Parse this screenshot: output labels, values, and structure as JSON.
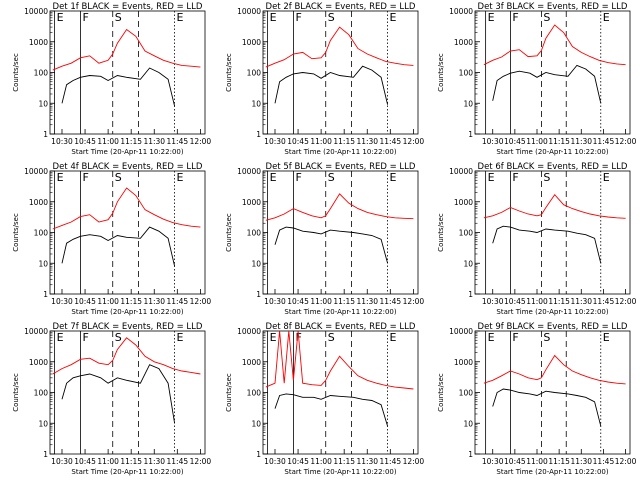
{
  "shared": {
    "ylabel": "Counts/sec",
    "xlabel": "Start Time (20-Apr-11 10:22:00)",
    "yticks": [
      "1",
      "10",
      "100",
      "1000",
      "10000"
    ],
    "xticks_std": [
      "10:30",
      "10:45",
      "11:00",
      "11:15",
      "11:30",
      "11:45",
      "12:00"
    ],
    "xticks_wide": [
      "10:30",
      "10:45",
      "11:00",
      "11:15",
      "11:30",
      "11:45",
      "12:00"
    ],
    "colors": {
      "events": "#000000",
      "lld": "#ff0000"
    },
    "markers": [
      {
        "label": "E",
        "time": 10.42
      },
      {
        "label": "F",
        "time": 10.7
      },
      {
        "label": "S",
        "time": 11.05
      },
      {
        "label": "E",
        "time": 11.72
      }
    ]
  },
  "chart_data": [
    {
      "type": "line",
      "title": "Det 1f BLACK = Events, RED = LLD",
      "xlabel": "Start Time (20-Apr-11 10:22:00)",
      "ylabel": "Counts/sec",
      "ylim": [
        1,
        10000
      ],
      "yscale": "log",
      "xlim": [
        10.37,
        12.05
      ],
      "xticks": [
        "10:30",
        "10:45",
        "11:00",
        "11:15",
        "11:30",
        "11:45",
        "12:00"
      ],
      "series": [
        {
          "color": "#000000",
          "x": [
            10.5,
            10.55,
            10.62,
            10.7,
            10.8,
            10.92,
            11.0,
            11.1,
            11.2,
            11.35,
            11.45,
            11.55,
            11.65,
            11.72
          ],
          "y": [
            10,
            40,
            55,
            70,
            80,
            75,
            55,
            80,
            70,
            60,
            140,
            100,
            60,
            8
          ]
        },
        {
          "color": "#ff0000",
          "x": [
            10.4,
            10.5,
            10.6,
            10.7,
            10.8,
            10.9,
            11.0,
            11.05,
            11.1,
            11.2,
            11.3,
            11.4,
            11.5,
            11.6,
            11.7,
            11.8,
            11.9,
            12.0
          ],
          "y": [
            120,
            160,
            200,
            300,
            350,
            200,
            250,
            400,
            900,
            2500,
            1500,
            500,
            350,
            250,
            200,
            170,
            160,
            150
          ]
        }
      ]
    },
    {
      "type": "line",
      "title": "Det 2f BLACK = Events, RED = LLD",
      "xlabel": "Start Time (20-Apr-11 10:22:00)",
      "ylabel": "Counts/sec",
      "ylim": [
        1,
        10000
      ],
      "yscale": "log",
      "xlim": [
        10.37,
        12.05
      ],
      "xticks": [
        "10:30",
        "10:45",
        "11:00",
        "11:15",
        "11:30",
        "11:45",
        "12:00"
      ],
      "series": [
        {
          "color": "#000000",
          "x": [
            10.5,
            10.55,
            10.62,
            10.7,
            10.8,
            10.92,
            11.0,
            11.1,
            11.2,
            11.35,
            11.45,
            11.55,
            11.65,
            11.72
          ],
          "y": [
            10,
            50,
            70,
            90,
            100,
            90,
            65,
            100,
            80,
            70,
            160,
            120,
            70,
            9
          ]
        },
        {
          "color": "#ff0000",
          "x": [
            10.4,
            10.5,
            10.6,
            10.7,
            10.8,
            10.9,
            11.0,
            11.05,
            11.1,
            11.2,
            11.3,
            11.4,
            11.5,
            11.6,
            11.7,
            11.8,
            11.9,
            12.0
          ],
          "y": [
            150,
            200,
            260,
            400,
            450,
            280,
            300,
            450,
            1100,
            3000,
            1700,
            600,
            400,
            300,
            230,
            200,
            180,
            170
          ]
        }
      ]
    },
    {
      "type": "line",
      "title": "Det 3f BLACK = Events, RED = LLD",
      "xlabel": "Start Time (20-Apr-11 10:22:00)",
      "ylabel": "Counts/sec",
      "ylim": [
        1,
        10000
      ],
      "yscale": "log",
      "xlim": [
        10.3,
        12.05
      ],
      "xticks": [
        "10:30",
        "10:45",
        "11:00",
        "11:15",
        "11:30",
        "11:45",
        "12:00"
      ],
      "series": [
        {
          "color": "#000000",
          "x": [
            10.5,
            10.55,
            10.62,
            10.7,
            10.8,
            10.92,
            11.0,
            11.1,
            11.2,
            11.35,
            11.45,
            11.55,
            11.65,
            11.72
          ],
          "y": [
            12,
            55,
            75,
            95,
            110,
            95,
            70,
            100,
            85,
            75,
            170,
            130,
            75,
            10
          ]
        },
        {
          "color": "#ff0000",
          "x": [
            10.4,
            10.5,
            10.6,
            10.7,
            10.8,
            10.9,
            11.0,
            11.05,
            11.1,
            11.2,
            11.3,
            11.4,
            11.5,
            11.6,
            11.7,
            11.8,
            11.9,
            12.0
          ],
          "y": [
            180,
            250,
            320,
            500,
            550,
            330,
            350,
            520,
            1300,
            3500,
            2000,
            700,
            450,
            330,
            250,
            210,
            190,
            180
          ]
        }
      ]
    },
    {
      "type": "line",
      "title": "Det 4f BLACK = Events, RED = LLD",
      "xlabel": "Start Time (20-Apr-11 10:22:00)",
      "ylabel": "Counts/sec",
      "ylim": [
        1,
        10000
      ],
      "yscale": "log",
      "xlim": [
        10.37,
        12.05
      ],
      "xticks": [
        "10:30",
        "10:45",
        "11:00",
        "11:15",
        "11:30",
        "11:45",
        "12:00"
      ],
      "series": [
        {
          "color": "#000000",
          "x": [
            10.5,
            10.55,
            10.62,
            10.7,
            10.8,
            10.92,
            11.0,
            11.1,
            11.2,
            11.35,
            11.45,
            11.55,
            11.65,
            11.72
          ],
          "y": [
            10,
            45,
            60,
            75,
            85,
            75,
            55,
            80,
            70,
            65,
            150,
            110,
            65,
            8
          ]
        },
        {
          "color": "#ff0000",
          "x": [
            10.4,
            10.5,
            10.6,
            10.7,
            10.8,
            10.9,
            11.0,
            11.05,
            11.1,
            11.2,
            11.3,
            11.4,
            11.5,
            11.6,
            11.7,
            11.8,
            11.9,
            12.0
          ],
          "y": [
            130,
            170,
            220,
            330,
            380,
            220,
            260,
            420,
            1000,
            2800,
            1600,
            550,
            380,
            270,
            210,
            180,
            160,
            150
          ]
        }
      ]
    },
    {
      "type": "line",
      "title": "Det 5f BLACK = Events, RED = LLD",
      "xlabel": "Start Time (20-Apr-11 10:22:00)",
      "ylabel": "Counts/sec",
      "ylim": [
        1,
        10000
      ],
      "yscale": "log",
      "xlim": [
        10.37,
        12.05
      ],
      "xticks": [
        "10:30",
        "10:45",
        "11:00",
        "11:15",
        "11:30",
        "11:45",
        "12:00"
      ],
      "series": [
        {
          "color": "#000000",
          "x": [
            10.5,
            10.55,
            10.62,
            10.7,
            10.8,
            10.92,
            11.0,
            11.1,
            11.2,
            11.35,
            11.45,
            11.55,
            11.65,
            11.72
          ],
          "y": [
            40,
            120,
            150,
            140,
            110,
            100,
            90,
            120,
            110,
            100,
            90,
            80,
            60,
            10
          ]
        },
        {
          "color": "#ff0000",
          "x": [
            10.4,
            10.5,
            10.6,
            10.7,
            10.8,
            10.9,
            11.0,
            11.05,
            11.1,
            11.2,
            11.3,
            11.4,
            11.5,
            11.6,
            11.7,
            11.8,
            11.9,
            12.0
          ],
          "y": [
            250,
            300,
            400,
            600,
            450,
            350,
            300,
            350,
            600,
            1800,
            900,
            600,
            450,
            380,
            330,
            300,
            290,
            280
          ]
        }
      ]
    },
    {
      "type": "line",
      "title": "Det 6f BLACK = Events, RED = LLD",
      "xlabel": "Start Time (20-Apr-11 10:22:00)",
      "ylabel": "Counts/sec",
      "ylim": [
        1,
        10000
      ],
      "yscale": "log",
      "xlim": [
        10.3,
        12.05
      ],
      "xticks": [
        "10:30",
        "10:45",
        "11:00",
        "11:15",
        "11:30",
        "11:45",
        "12:00"
      ],
      "series": [
        {
          "color": "#000000",
          "x": [
            10.5,
            10.55,
            10.62,
            10.7,
            10.8,
            10.92,
            11.0,
            11.1,
            11.2,
            11.35,
            11.45,
            11.55,
            11.65,
            11.72
          ],
          "y": [
            45,
            130,
            160,
            150,
            120,
            110,
            100,
            130,
            120,
            110,
            95,
            85,
            65,
            10
          ]
        },
        {
          "color": "#ff0000",
          "x": [
            10.4,
            10.5,
            10.6,
            10.7,
            10.8,
            10.9,
            11.0,
            11.05,
            11.1,
            11.2,
            11.3,
            11.4,
            11.5,
            11.6,
            11.7,
            11.8,
            11.9,
            12.0
          ],
          "y": [
            300,
            350,
            450,
            650,
            500,
            400,
            350,
            380,
            650,
            1700,
            800,
            600,
            480,
            400,
            350,
            320,
            300,
            290
          ]
        }
      ]
    },
    {
      "type": "line",
      "title": "Det 7f BLACK = Events, RED = LLD",
      "xlabel": "Start Time (20-Apr-11 10:22:00)",
      "ylabel": "Counts/sec",
      "ylim": [
        1,
        10000
      ],
      "yscale": "log",
      "xlim": [
        10.37,
        12.05
      ],
      "xticks": [
        "10:30",
        "10:45",
        "11:00",
        "11:15",
        "11:30",
        "11:45",
        "12:00"
      ],
      "series": [
        {
          "color": "#000000",
          "x": [
            10.5,
            10.55,
            10.62,
            10.7,
            10.8,
            10.92,
            11.0,
            11.1,
            11.2,
            11.35,
            11.45,
            11.55,
            11.65,
            11.72
          ],
          "y": [
            60,
            200,
            300,
            350,
            400,
            300,
            200,
            300,
            250,
            200,
            800,
            600,
            200,
            10
          ]
        },
        {
          "color": "#ff0000",
          "x": [
            10.4,
            10.5,
            10.6,
            10.7,
            10.8,
            10.9,
            11.0,
            11.05,
            11.1,
            11.2,
            11.3,
            11.4,
            11.5,
            11.6,
            11.7,
            11.8,
            11.9,
            12.0
          ],
          "y": [
            400,
            600,
            800,
            1200,
            1300,
            900,
            800,
            1100,
            2500,
            6000,
            3500,
            1500,
            1000,
            800,
            600,
            500,
            450,
            400
          ]
        }
      ]
    },
    {
      "type": "line",
      "title": "Det 8f BLACK = Events, RED = LLD",
      "xlabel": "Start Time (20-Apr-11 10:22:00)",
      "ylabel": "Counts/sec",
      "ylim": [
        1,
        10000
      ],
      "yscale": "log",
      "xlim": [
        10.37,
        12.05
      ],
      "xticks": [
        "10:30",
        "10:45",
        "11:00",
        "11:15",
        "11:30",
        "11:45",
        "12:00"
      ],
      "series": [
        {
          "color": "#000000",
          "x": [
            10.5,
            10.55,
            10.62,
            10.7,
            10.8,
            10.92,
            11.0,
            11.1,
            11.2,
            11.35,
            11.45,
            11.55,
            11.65,
            11.72
          ],
          "y": [
            30,
            80,
            90,
            85,
            70,
            70,
            60,
            80,
            75,
            70,
            60,
            55,
            40,
            8
          ]
        },
        {
          "color": "#ff0000",
          "x": [
            10.4,
            10.5,
            10.55,
            10.6,
            10.65,
            10.7,
            10.75,
            10.8,
            10.9,
            11.0,
            11.05,
            11.1,
            11.2,
            11.3,
            11.4,
            11.5,
            11.6,
            11.7,
            11.8,
            11.9,
            12.0
          ],
          "y": [
            150,
            200,
            10000,
            200,
            10000,
            250,
            10000,
            200,
            180,
            170,
            250,
            500,
            1500,
            700,
            350,
            250,
            200,
            170,
            150,
            140,
            130
          ]
        }
      ]
    },
    {
      "type": "line",
      "title": "Det 9f BLACK = Events, RED = LLD",
      "xlabel": "Start Time (20-Apr-11 10:22:00)",
      "ylabel": "Counts/sec",
      "ylim": [
        1,
        10000
      ],
      "yscale": "log",
      "xlim": [
        10.3,
        12.05
      ],
      "xticks": [
        "10:30",
        "10:45",
        "11:00",
        "11:15",
        "11:30",
        "11:45",
        "12:00"
      ],
      "series": [
        {
          "color": "#000000",
          "x": [
            10.5,
            10.55,
            10.62,
            10.7,
            10.8,
            10.92,
            11.0,
            11.1,
            11.2,
            11.35,
            11.45,
            11.55,
            11.65,
            11.72
          ],
          "y": [
            35,
            100,
            130,
            120,
            100,
            90,
            80,
            110,
            100,
            90,
            80,
            70,
            50,
            8
          ]
        },
        {
          "color": "#ff0000",
          "x": [
            10.4,
            10.5,
            10.6,
            10.7,
            10.8,
            10.9,
            11.0,
            11.05,
            11.1,
            11.2,
            11.3,
            11.4,
            11.5,
            11.6,
            11.7,
            11.8,
            11.9,
            12.0
          ],
          "y": [
            200,
            250,
            350,
            500,
            400,
            300,
            260,
            300,
            550,
            1600,
            800,
            500,
            380,
            300,
            250,
            220,
            200,
            190
          ]
        }
      ]
    }
  ]
}
